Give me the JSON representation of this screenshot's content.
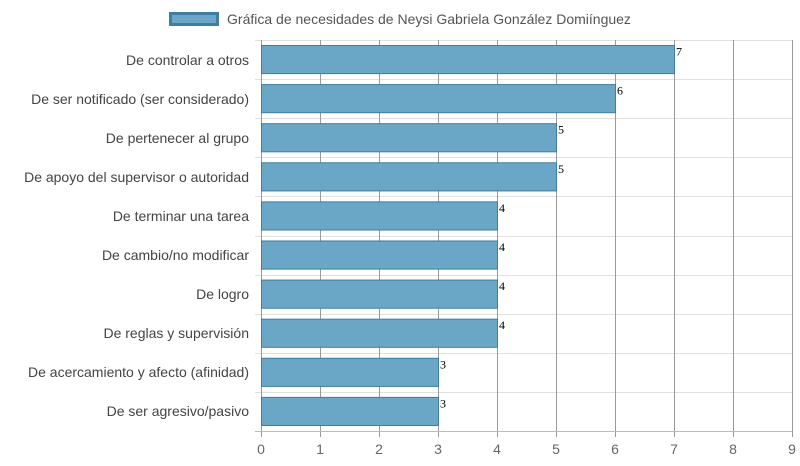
{
  "chart_data": {
    "type": "bar",
    "orientation": "horizontal",
    "title": "",
    "xlabel": "",
    "ylabel": "",
    "legend": {
      "position": "top",
      "entries": [
        "Gráfica de necesidades de Neysi Gabriela González Domiínguez"
      ]
    },
    "categories": [
      "De controlar a otros",
      "De ser notificado (ser considerado)",
      "De pertenecer al grupo",
      "De apoyo del supervisor o autoridad",
      "De terminar una tarea",
      "De cambio/no modificar",
      "De logro",
      "De reglas y supervisión",
      "De acercamiento y afecto (afinidad)",
      "De ser agresivo/pasivo"
    ],
    "series": [
      {
        "name": "Gráfica de necesidades de Neysi Gabriela González Domiínguez",
        "values": [
          7,
          6,
          5,
          5,
          4,
          4,
          4,
          4,
          3,
          3
        ]
      }
    ],
    "xlim": [
      0,
      9
    ],
    "xticks": [
      "0",
      "1",
      "2",
      "3",
      "4",
      "5",
      "6",
      "7",
      "8",
      "9"
    ],
    "grid": true,
    "data_labels": true,
    "colors": {
      "bar_fill": "#6aa6c6",
      "bar_border": "#3d7ea6"
    }
  }
}
